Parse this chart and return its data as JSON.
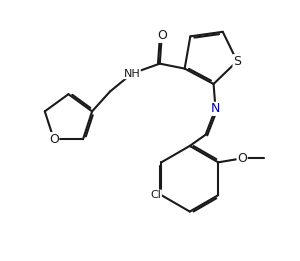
{
  "bg": "#ffffff",
  "lc": "#1a1a1a",
  "nc": "#0000b0",
  "lw": 1.5,
  "dbo": 0.018,
  "fs": 8,
  "figsize": [
    3.0,
    2.61
  ],
  "dpi": 100,
  "xlim": [
    0,
    3.0
  ],
  "ylim": [
    0,
    2.61
  ]
}
